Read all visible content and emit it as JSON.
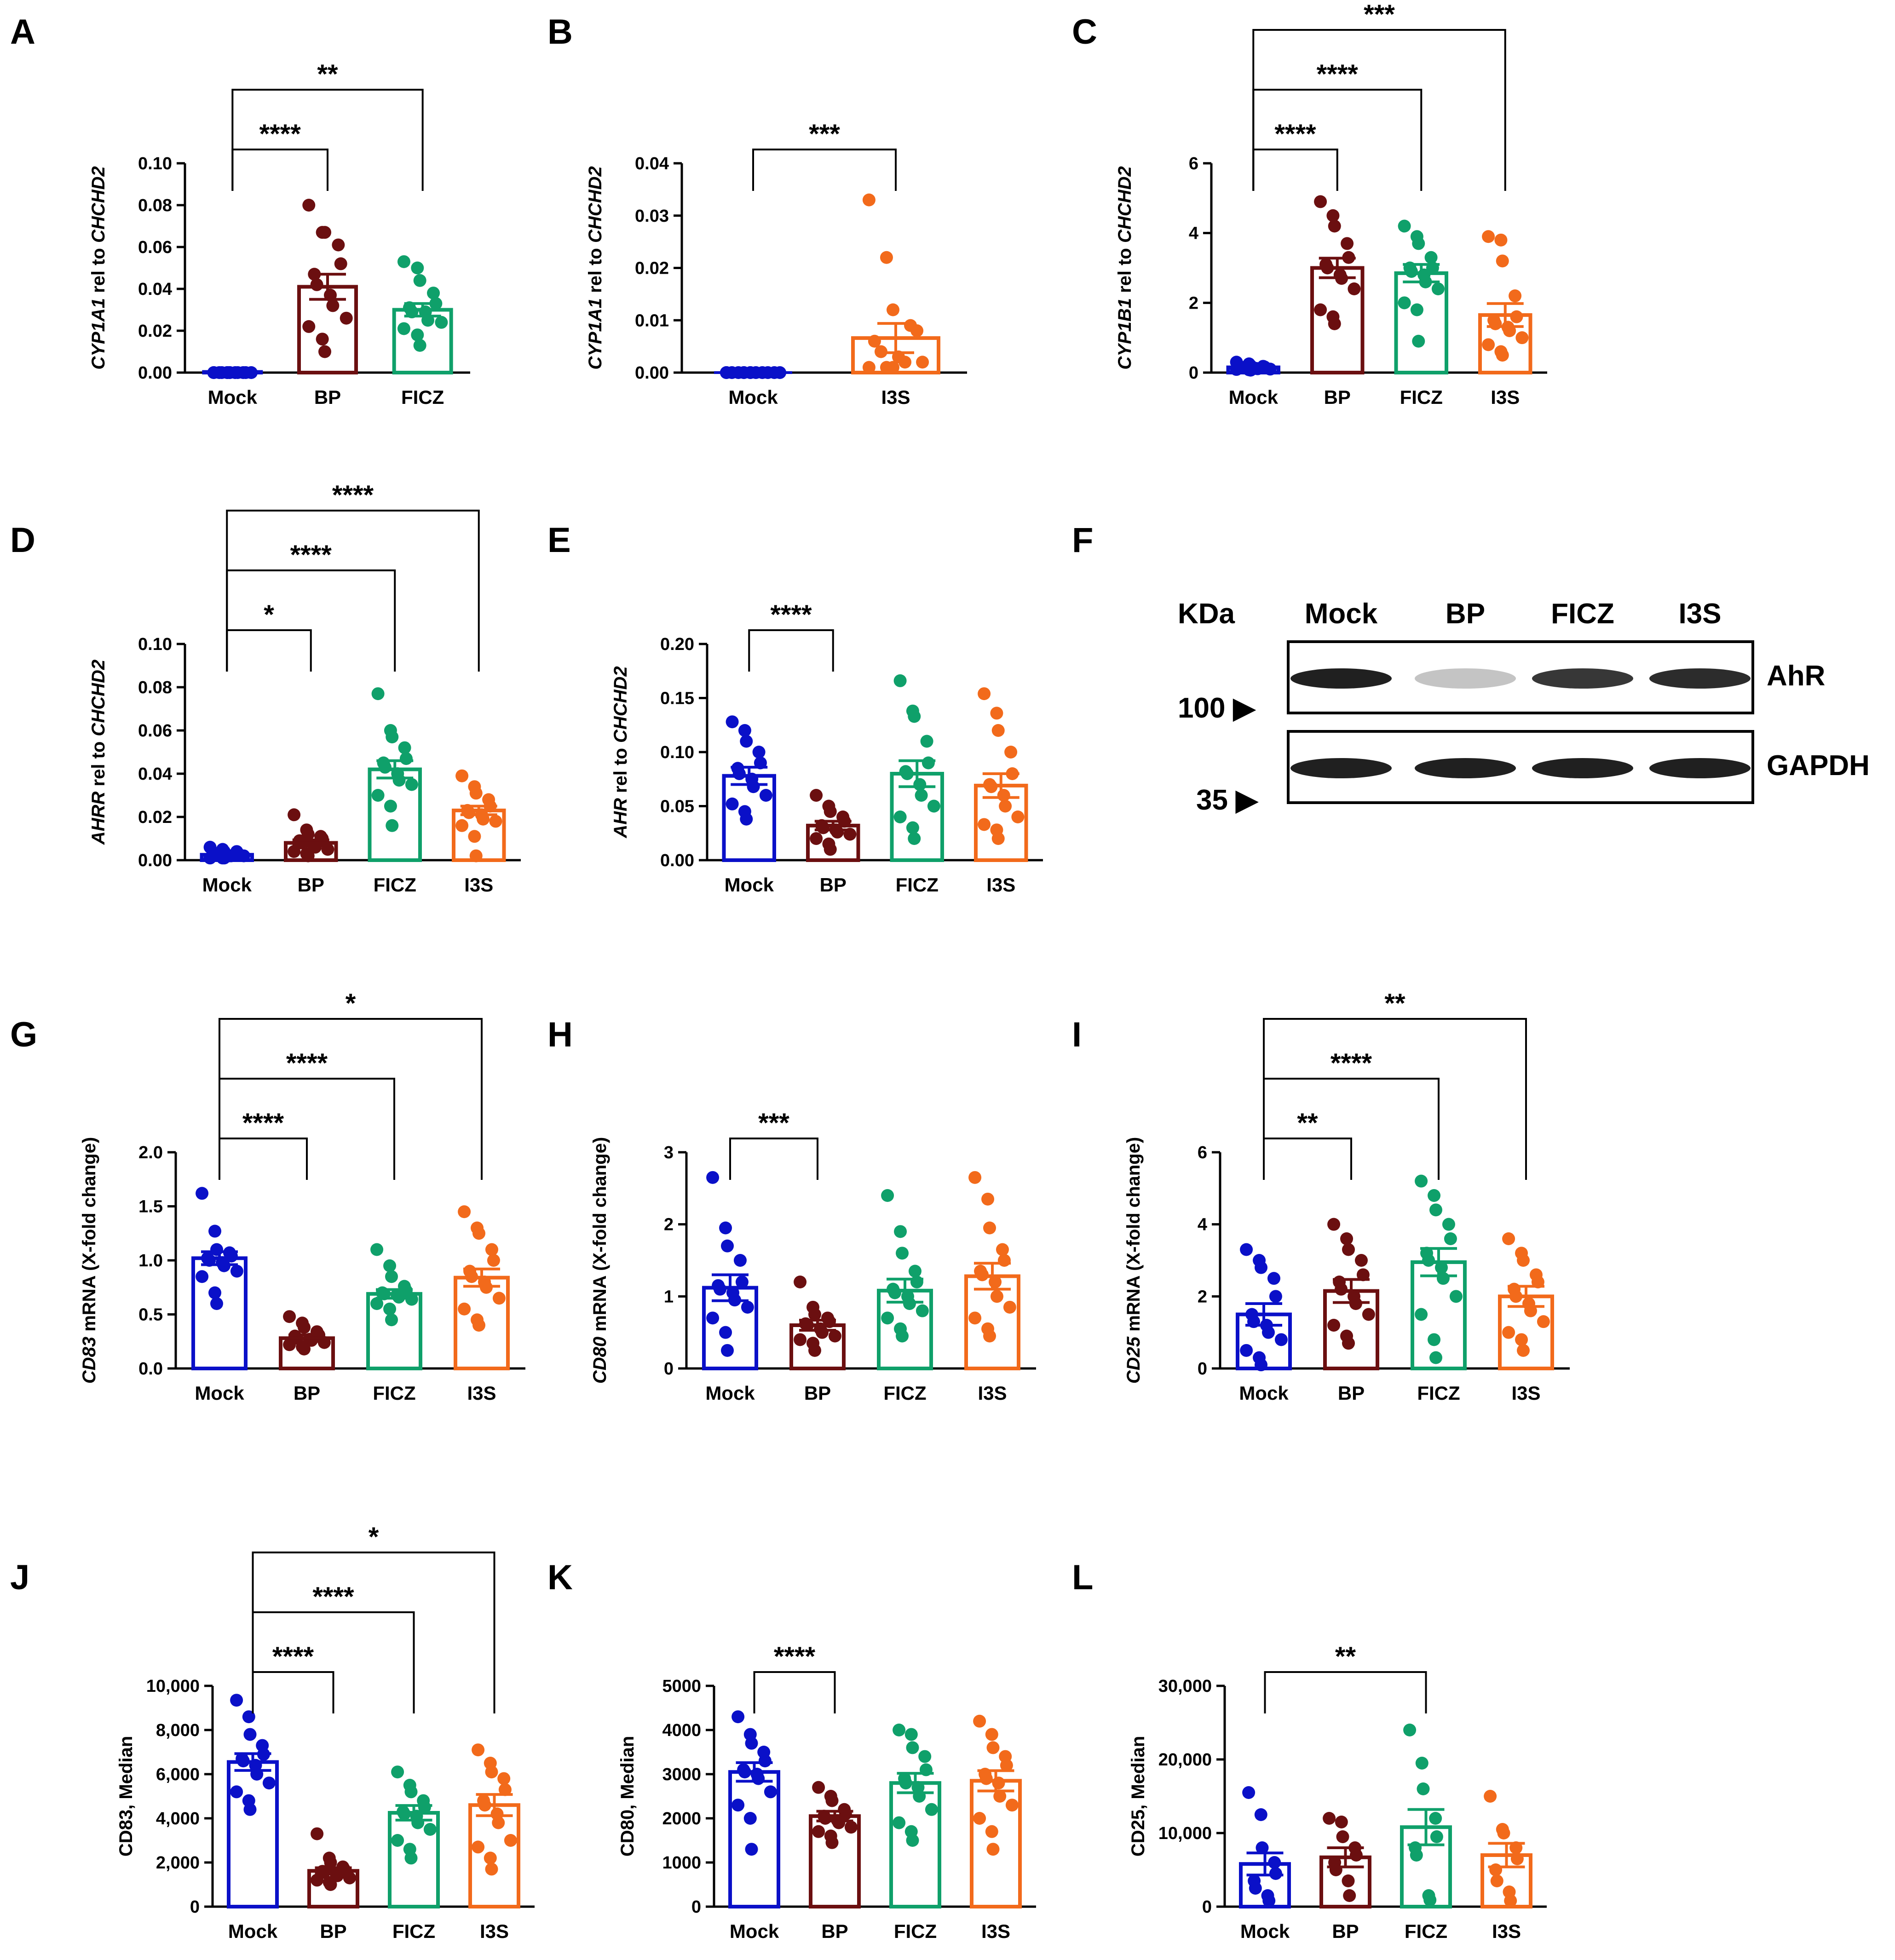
{
  "colors": {
    "Mock": "#0a10c8",
    "BP": "#6b0f10",
    "FICZ": "#0fa06a",
    "I3S": "#f26a1b"
  },
  "chart_data": [
    {
      "id": "A",
      "type": "bar",
      "letter": "A",
      "ylabel_gene": "CYP1A1",
      "ylabel_rest": " rel to ",
      "ylabel_gene2": "CHCHD2",
      "categories": [
        "Mock",
        "BP",
        "FICZ"
      ],
      "ylim": [
        0,
        0.1
      ],
      "ticks": [
        0,
        0.02,
        0.04,
        0.06,
        0.08,
        0.1
      ],
      "tick_labels": [
        "0.00",
        "0.02",
        "0.04",
        "0.06",
        "0.08",
        "0.10"
      ],
      "means": [
        0.0003,
        0.041,
        0.03
      ],
      "sems": [
        0.0001,
        0.006,
        0.003
      ],
      "points": [
        [
          0,
          0,
          0,
          0,
          0,
          0,
          0,
          0,
          0,
          0,
          0,
          0,
          0
        ],
        [
          0.08,
          0.067,
          0.067,
          0.061,
          0.052,
          0.047,
          0.042,
          0.037,
          0.032,
          0.026,
          0.022,
          0.016,
          0.01
        ],
        [
          0.053,
          0.05,
          0.044,
          0.038,
          0.033,
          0.031,
          0.029,
          0.029,
          0.025,
          0.024,
          0.021,
          0.018,
          0.013
        ]
      ],
      "sig": [
        {
          "from": 0,
          "to": 1,
          "label": "****"
        },
        {
          "from": 0,
          "to": 2,
          "label": "**"
        }
      ]
    },
    {
      "id": "B",
      "type": "bar",
      "letter": "B",
      "ylabel_gene": "CYP1A1",
      "ylabel_rest": " rel to ",
      "ylabel_gene2": "CHCHD2",
      "categories": [
        "Mock",
        "I3S"
      ],
      "ylim": [
        0,
        0.04
      ],
      "ticks": [
        0,
        0.01,
        0.02,
        0.03,
        0.04
      ],
      "tick_labels": [
        "0.00",
        "0.01",
        "0.02",
        "0.03",
        "0.04"
      ],
      "means": [
        0.0,
        0.0066
      ],
      "sems": [
        0.0,
        0.0028
      ],
      "points": [
        [
          0,
          0,
          0,
          0,
          0,
          0,
          0,
          0,
          0,
          0,
          0,
          0,
          0
        ],
        [
          0.033,
          0.022,
          0.012,
          0.009,
          0.008,
          0.006,
          0.004,
          0.003,
          0.002,
          0.002,
          0.001,
          0.001,
          0.001
        ]
      ],
      "sig": [
        {
          "from": 0,
          "to": 1,
          "label": "***"
        }
      ]
    },
    {
      "id": "C",
      "type": "bar",
      "letter": "C",
      "ylabel_gene": "CYP1B1",
      "ylabel_rest": " rel to ",
      "ylabel_gene2": "CHCHD2",
      "categories": [
        "Mock",
        "BP",
        "FICZ",
        "I3S"
      ],
      "ylim": [
        0,
        6
      ],
      "ticks": [
        0,
        2,
        4,
        6
      ],
      "tick_labels": [
        "0",
        "2",
        "4",
        "6"
      ],
      "means": [
        0.15,
        3.0,
        2.85,
        1.65
      ],
      "sems": [
        0.04,
        0.28,
        0.25,
        0.33
      ],
      "points": [
        [
          0.3,
          0.25,
          0.2,
          0.18,
          0.16,
          0.15,
          0.13,
          0.12,
          0.11,
          0.1,
          0.09,
          0.08,
          0.07
        ],
        [
          4.9,
          4.5,
          4.2,
          3.7,
          3.3,
          3.1,
          3.0,
          2.8,
          2.7,
          2.4,
          1.8,
          1.6,
          1.4
        ],
        [
          4.2,
          3.9,
          3.7,
          3.3,
          3.0,
          3.0,
          2.9,
          2.8,
          2.6,
          2.4,
          2.0,
          1.8,
          0.9
        ],
        [
          3.9,
          3.8,
          3.2,
          2.2,
          1.6,
          1.5,
          1.4,
          1.3,
          1.2,
          1.0,
          0.8,
          0.6,
          0.5
        ]
      ],
      "sig": [
        {
          "from": 0,
          "to": 1,
          "label": "****"
        },
        {
          "from": 0,
          "to": 2,
          "label": "****"
        },
        {
          "from": 0,
          "to": 3,
          "label": "***"
        }
      ]
    },
    {
      "id": "D",
      "type": "bar",
      "letter": "D",
      "ylabel_gene": "AHRR",
      "ylabel_rest": " rel to ",
      "ylabel_gene2": "CHCHD2",
      "categories": [
        "Mock",
        "BP",
        "FICZ",
        "I3S"
      ],
      "ylim": [
        0,
        0.1
      ],
      "ticks": [
        0,
        0.02,
        0.04,
        0.06,
        0.08,
        0.1
      ],
      "tick_labels": [
        "0.00",
        "0.02",
        "0.04",
        "0.06",
        "0.08",
        "0.10"
      ],
      "means": [
        0.0025,
        0.008,
        0.042,
        0.023
      ],
      "sems": [
        0.0005,
        0.0014,
        0.004,
        0.002
      ],
      "points": [
        [
          0.006,
          0.005,
          0.004,
          0.004,
          0.003,
          0.003,
          0.003,
          0.002,
          0.002,
          0.002,
          0.001,
          0.001,
          0.001
        ],
        [
          0.021,
          0.014,
          0.012,
          0.011,
          0.01,
          0.009,
          0.008,
          0.007,
          0.006,
          0.005,
          0.004,
          0.003,
          0.002
        ],
        [
          0.077,
          0.06,
          0.057,
          0.052,
          0.047,
          0.045,
          0.043,
          0.04,
          0.037,
          0.035,
          0.03,
          0.025,
          0.016
        ],
        [
          0.039,
          0.034,
          0.031,
          0.028,
          0.025,
          0.023,
          0.022,
          0.021,
          0.019,
          0.018,
          0.016,
          0.011,
          0.002
        ]
      ],
      "sig": [
        {
          "from": 0,
          "to": 1,
          "label": "*"
        },
        {
          "from": 0,
          "to": 2,
          "label": "****"
        },
        {
          "from": 0,
          "to": 3,
          "label": "****"
        }
      ]
    },
    {
      "id": "E",
      "type": "bar",
      "letter": "E",
      "ylabel_gene": "AHR",
      "ylabel_rest": " rel to ",
      "ylabel_gene2": "CHCHD2",
      "categories": [
        "Mock",
        "BP",
        "FICZ",
        "I3S"
      ],
      "ylim": [
        0,
        0.2
      ],
      "ticks": [
        0,
        0.05,
        0.1,
        0.15,
        0.2
      ],
      "tick_labels": [
        "0.00",
        "0.05",
        "0.10",
        "0.15",
        "0.20"
      ],
      "means": [
        0.078,
        0.032,
        0.08,
        0.069
      ],
      "sems": [
        0.008,
        0.004,
        0.012,
        0.011
      ],
      "points": [
        [
          0.128,
          0.12,
          0.11,
          0.1,
          0.09,
          0.085,
          0.08,
          0.075,
          0.068,
          0.06,
          0.052,
          0.045,
          0.038
        ],
        [
          0.06,
          0.05,
          0.045,
          0.04,
          0.036,
          0.032,
          0.03,
          0.028,
          0.026,
          0.024,
          0.02,
          0.015,
          0.01
        ],
        [
          0.166,
          0.138,
          0.133,
          0.11,
          0.09,
          0.082,
          0.08,
          0.07,
          0.06,
          0.05,
          0.04,
          0.03,
          0.02
        ],
        [
          0.154,
          0.136,
          0.12,
          0.1,
          0.08,
          0.07,
          0.068,
          0.06,
          0.05,
          0.04,
          0.033,
          0.028,
          0.02
        ]
      ],
      "sig": [
        {
          "from": 0,
          "to": 1,
          "label": "****"
        }
      ]
    },
    {
      "id": "G",
      "type": "bar",
      "letter": "G",
      "ylabel_gene": "CD83",
      "ylabel_rest": " mRNA (X-fold change)",
      "ylabel_gene2": "",
      "categories": [
        "Mock",
        "BP",
        "FICZ",
        "I3S"
      ],
      "ylim": [
        0,
        2.0
      ],
      "ticks": [
        0,
        0.5,
        1.0,
        1.5,
        2.0
      ],
      "tick_labels": [
        "0.0",
        "0.5",
        "1.0",
        "1.5",
        "2.0"
      ],
      "means": [
        1.02,
        0.28,
        0.69,
        0.84
      ],
      "sems": [
        0.06,
        0.03,
        0.04,
        0.08
      ],
      "points": [
        [
          1.62,
          1.27,
          1.1,
          1.07,
          1.04,
          1.02,
          1.0,
          0.98,
          0.95,
          0.9,
          0.85,
          0.7,
          0.6
        ],
        [
          0.48,
          0.42,
          0.38,
          0.34,
          0.31,
          0.3,
          0.28,
          0.27,
          0.26,
          0.24,
          0.22,
          0.2,
          0.18
        ],
        [
          1.1,
          0.95,
          0.85,
          0.76,
          0.72,
          0.7,
          0.69,
          0.68,
          0.66,
          0.64,
          0.6,
          0.55,
          0.45
        ],
        [
          1.45,
          1.3,
          1.25,
          1.1,
          1.0,
          0.9,
          0.85,
          0.8,
          0.75,
          0.65,
          0.55,
          0.45,
          0.4
        ]
      ],
      "sig": [
        {
          "from": 0,
          "to": 1,
          "label": "****"
        },
        {
          "from": 0,
          "to": 2,
          "label": "****"
        },
        {
          "from": 0,
          "to": 3,
          "label": "*"
        }
      ]
    },
    {
      "id": "H",
      "type": "bar",
      "letter": "H",
      "ylabel_gene": "CD80",
      "ylabel_rest": " mRNA (X-fold change)",
      "ylabel_gene2": "",
      "categories": [
        "Mock",
        "BP",
        "FICZ",
        "I3S"
      ],
      "ylim": [
        0,
        3
      ],
      "ticks": [
        0,
        1,
        2,
        3
      ],
      "tick_labels": [
        "0",
        "1",
        "2",
        "3"
      ],
      "means": [
        1.12,
        0.6,
        1.08,
        1.28
      ],
      "sems": [
        0.18,
        0.07,
        0.16,
        0.18
      ],
      "points": [
        [
          2.65,
          1.95,
          1.7,
          1.5,
          1.2,
          1.15,
          1.1,
          1.05,
          0.95,
          0.85,
          0.7,
          0.5,
          0.25
        ],
        [
          1.2,
          0.85,
          0.75,
          0.7,
          0.65,
          0.62,
          0.6,
          0.55,
          0.5,
          0.45,
          0.4,
          0.35,
          0.25
        ],
        [
          2.4,
          1.9,
          1.6,
          1.35,
          1.2,
          1.1,
          1.05,
          1.0,
          0.9,
          0.8,
          0.7,
          0.55,
          0.45
        ],
        [
          2.65,
          2.35,
          1.95,
          1.65,
          1.5,
          1.35,
          1.3,
          1.2,
          1.0,
          0.85,
          0.7,
          0.55,
          0.45
        ]
      ],
      "sig": [
        {
          "from": 0,
          "to": 1,
          "label": "***"
        }
      ]
    },
    {
      "id": "I",
      "type": "bar",
      "letter": "I",
      "ylabel_gene": "CD25",
      "ylabel_rest": " mRNA (X-fold change)",
      "ylabel_gene2": "",
      "categories": [
        "Mock",
        "BP",
        "FICZ",
        "I3S"
      ],
      "ylim": [
        0,
        6
      ],
      "ticks": [
        0,
        2,
        4,
        6
      ],
      "tick_labels": [
        "0",
        "2",
        "4",
        "6"
      ],
      "means": [
        1.5,
        2.15,
        2.95,
        2.0
      ],
      "sems": [
        0.3,
        0.32,
        0.38,
        0.28
      ],
      "points": [
        [
          3.3,
          3.0,
          2.8,
          2.5,
          2.0,
          1.5,
          1.3,
          1.2,
          1.0,
          0.8,
          0.5,
          0.3,
          0.1
        ],
        [
          4.0,
          3.6,
          3.3,
          3.0,
          2.6,
          2.4,
          2.2,
          2.0,
          1.8,
          1.5,
          1.2,
          0.9,
          0.7
        ],
        [
          5.2,
          4.8,
          4.4,
          4.0,
          3.6,
          3.2,
          3.0,
          2.8,
          2.5,
          2.0,
          1.5,
          0.8,
          0.3
        ],
        [
          3.6,
          3.2,
          3.0,
          2.6,
          2.4,
          2.2,
          2.0,
          1.8,
          1.6,
          1.3,
          1.0,
          0.8,
          0.5
        ]
      ],
      "sig": [
        {
          "from": 0,
          "to": 1,
          "label": "**"
        },
        {
          "from": 0,
          "to": 2,
          "label": "****"
        },
        {
          "from": 0,
          "to": 3,
          "label": "**"
        }
      ]
    },
    {
      "id": "J",
      "type": "bar",
      "letter": "J",
      "ylabel_gene": "",
      "ylabel_rest": "CD83, Median",
      "ylabel_gene2": "",
      "categories": [
        "Mock",
        "BP",
        "FICZ",
        "I3S"
      ],
      "ylim": [
        0,
        10000
      ],
      "ticks": [
        0,
        2000,
        4000,
        6000,
        8000,
        10000
      ],
      "tick_labels": [
        "0",
        "2,000",
        "4,000",
        "6,000",
        "8,000",
        "10,000"
      ],
      "means": [
        6550,
        1620,
        4250,
        4600
      ],
      "sems": [
        380,
        140,
        330,
        480
      ],
      "points": [
        [
          9350,
          8600,
          7800,
          7300,
          6900,
          6700,
          6600,
          6400,
          6000,
          5600,
          5200,
          4800,
          4400
        ],
        [
          3300,
          2200,
          2000,
          1800,
          1700,
          1600,
          1550,
          1500,
          1400,
          1300,
          1200,
          1100,
          1000
        ],
        [
          6100,
          5500,
          5200,
          4800,
          4500,
          4300,
          4200,
          4100,
          3800,
          3500,
          3000,
          2600,
          2200
        ],
        [
          7100,
          6500,
          6100,
          5800,
          5300,
          4800,
          4600,
          4200,
          3800,
          3000,
          2700,
          2200,
          1700
        ]
      ],
      "sig": [
        {
          "from": 0,
          "to": 1,
          "label": "****"
        },
        {
          "from": 0,
          "to": 2,
          "label": "****"
        },
        {
          "from": 0,
          "to": 3,
          "label": "*"
        }
      ]
    },
    {
      "id": "K",
      "type": "bar",
      "letter": "K",
      "ylabel_gene": "",
      "ylabel_rest": "CD80, Median",
      "ylabel_gene2": "",
      "categories": [
        "Mock",
        "BP",
        "FICZ",
        "I3S"
      ],
      "ylim": [
        0,
        5000
      ],
      "ticks": [
        0,
        1000,
        2000,
        3000,
        4000,
        5000
      ],
      "tick_labels": [
        "0",
        "1000",
        "2000",
        "3000",
        "4000",
        "5000"
      ],
      "means": [
        3050,
        2050,
        2800,
        2850
      ],
      "sems": [
        210,
        110,
        220,
        230
      ],
      "points": [
        [
          4300,
          3900,
          3700,
          3500,
          3300,
          3100,
          3050,
          3000,
          2900,
          2600,
          2300,
          2000,
          1300
        ],
        [
          2700,
          2500,
          2400,
          2200,
          2100,
          2050,
          2000,
          1950,
          1900,
          1800,
          1700,
          1600,
          1450
        ],
        [
          4000,
          3900,
          3600,
          3400,
          3100,
          2900,
          2800,
          2700,
          2500,
          2200,
          1900,
          1700,
          1500
        ],
        [
          4200,
          3900,
          3600,
          3400,
          3200,
          3000,
          2900,
          2800,
          2500,
          2300,
          2000,
          1700,
          1300
        ]
      ],
      "sig": [
        {
          "from": 0,
          "to": 1,
          "label": "****"
        }
      ]
    },
    {
      "id": "L",
      "type": "bar",
      "letter": "L",
      "ylabel_gene": "",
      "ylabel_rest": "CD25, Median",
      "ylabel_gene2": "",
      "categories": [
        "Mock",
        "BP",
        "FICZ",
        "I3S"
      ],
      "ylim": [
        0,
        30000
      ],
      "ticks": [
        0,
        10000,
        20000,
        30000
      ],
      "tick_labels": [
        "0",
        "10,000",
        "20,000",
        "30,000"
      ],
      "means": [
        5800,
        6700,
        10800,
        7000
      ],
      "sems": [
        1500,
        1300,
        2400,
        1600
      ],
      "points": [
        [
          15500,
          12500,
          8000,
          6000,
          4500,
          3500,
          2500,
          1500,
          800
        ],
        [
          12000,
          11500,
          9500,
          8000,
          7000,
          6000,
          5000,
          3500,
          1500
        ],
        [
          24000,
          19500,
          16000,
          12000,
          9500,
          8000,
          7000,
          1500,
          900
        ],
        [
          15000,
          10500,
          10000,
          8000,
          6500,
          5000,
          3500,
          2000,
          800
        ]
      ],
      "sig": [
        {
          "from": 0,
          "to": 2,
          "label": "**"
        }
      ]
    }
  ],
  "blot": {
    "letter": "F",
    "unit_label": "KDa",
    "lanes": [
      "Mock",
      "BP",
      "FICZ",
      "I3S"
    ],
    "markers": [
      "100 ▶",
      "35 ▶"
    ],
    "rows": [
      {
        "label": "AhR",
        "intensities": [
          0.95,
          0.25,
          0.85,
          0.9
        ]
      },
      {
        "label": "GAPDH",
        "intensities": [
          0.95,
          0.95,
          0.95,
          0.95
        ]
      }
    ]
  }
}
